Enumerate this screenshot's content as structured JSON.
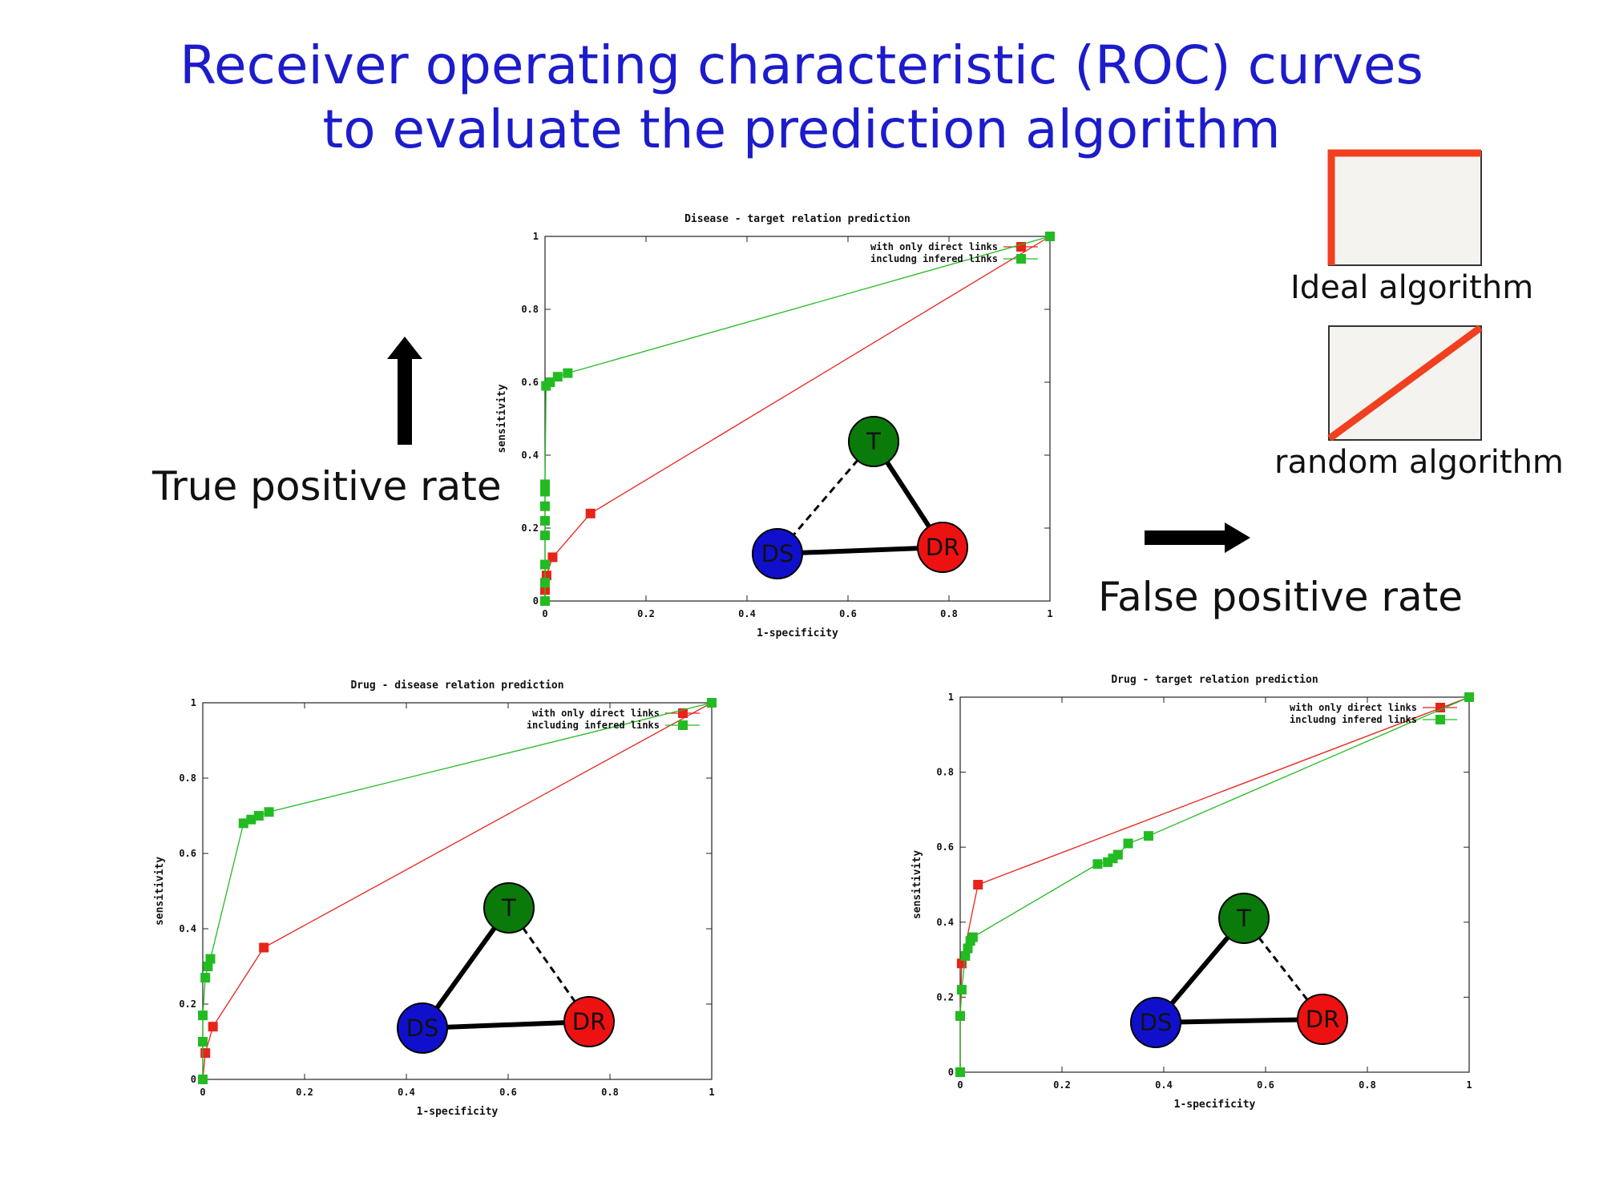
{
  "slide": {
    "title_line1": "Receiver operating characteristic (ROC) curves",
    "title_line2": "to evaluate the prediction algorithm",
    "y_caption": "True positive rate",
    "x_caption": "False positive rate",
    "ideal_label": "Ideal algorithm",
    "random_label": "random algorithm",
    "colors": {
      "title": "#1c1ccc",
      "series_direct": "#e8231a",
      "series_inferred": "#22bb22",
      "ideal_line": "#f04020",
      "target_node": "#0a7a0a",
      "disease_node": "#1010cc",
      "drug_node": "#ee1111"
    }
  },
  "chart_data": [
    {
      "type": "line",
      "title": "Disease - target relation prediction",
      "xlabel": "1-specificity",
      "ylabel": "sensitivity",
      "xlim": [
        0,
        1
      ],
      "ylim": [
        0,
        1
      ],
      "xticks": [
        "0",
        "0.2",
        "0.4",
        "0.6",
        "0.8",
        "1"
      ],
      "yticks": [
        "0",
        "0.2",
        "0.4",
        "0.6",
        "0.8",
        "1"
      ],
      "grid": false,
      "legend_position": "top-right",
      "series": [
        {
          "name": "with only direct links",
          "color": "#e8231a",
          "x": [
            0,
            0,
            0.003,
            0.015,
            0.09,
            1
          ],
          "y": [
            0,
            0.03,
            0.07,
            0.12,
            0.24,
            1
          ]
        },
        {
          "name": "includng infered links",
          "color": "#22bb22",
          "x": [
            0,
            0,
            0,
            0,
            0,
            0,
            0,
            0,
            0.002,
            0.01,
            0.025,
            0.045,
            1
          ],
          "y": [
            0,
            0.05,
            0.1,
            0.18,
            0.22,
            0.26,
            0.3,
            0.32,
            0.59,
            0.6,
            0.615,
            0.625,
            1
          ]
        }
      ],
      "diagram": {
        "top": "T",
        "left": "DS",
        "right": "DR",
        "dashed_edge": "DS-T"
      }
    },
    {
      "type": "line",
      "title": "Drug - disease relation prediction",
      "xlabel": "1-specificity",
      "ylabel": "sensitivity",
      "xlim": [
        0,
        1
      ],
      "ylim": [
        0,
        1
      ],
      "xticks": [
        "0",
        "0.2",
        "0.4",
        "0.6",
        "0.8",
        "1"
      ],
      "yticks": [
        "0",
        "0.2",
        "0.4",
        "0.6",
        "0.8",
        "1"
      ],
      "grid": false,
      "legend_position": "top-right",
      "series": [
        {
          "name": "with only direct links",
          "color": "#e8231a",
          "x": [
            0,
            0.005,
            0.02,
            0.12,
            1
          ],
          "y": [
            0,
            0.07,
            0.14,
            0.35,
            1
          ]
        },
        {
          "name": "including infered links",
          "color": "#22bb22",
          "x": [
            0,
            0,
            0,
            0.005,
            0.01,
            0.015,
            0.08,
            0.095,
            0.11,
            0.13,
            1
          ],
          "y": [
            0,
            0.1,
            0.17,
            0.27,
            0.3,
            0.32,
            0.68,
            0.69,
            0.7,
            0.71,
            1
          ]
        }
      ],
      "diagram": {
        "top": "T",
        "left": "DS",
        "right": "DR",
        "dashed_edge": "T-DR"
      }
    },
    {
      "type": "line",
      "title": "Drug - target relation prediction",
      "xlabel": "1-specificity",
      "ylabel": "sensitivity",
      "xlim": [
        0,
        1
      ],
      "ylim": [
        0,
        1
      ],
      "xticks": [
        "0",
        "0.2",
        "0.4",
        "0.6",
        "0.8",
        "1"
      ],
      "yticks": [
        "0",
        "0.2",
        "0.4",
        "0.6",
        "0.8",
        "1"
      ],
      "grid": false,
      "legend_position": "top-right",
      "series": [
        {
          "name": "with only direct links",
          "color": "#e8231a",
          "x": [
            0,
            0,
            0.003,
            0.035,
            1
          ],
          "y": [
            0,
            0.15,
            0.29,
            0.5,
            1
          ]
        },
        {
          "name": "includng infered links",
          "color": "#22bb22",
          "x": [
            0,
            0,
            0.003,
            0.01,
            0.015,
            0.02,
            0.025,
            0.27,
            0.29,
            0.3,
            0.31,
            0.33,
            0.37,
            1
          ],
          "y": [
            0,
            0.15,
            0.22,
            0.31,
            0.33,
            0.35,
            0.36,
            0.555,
            0.56,
            0.57,
            0.58,
            0.61,
            0.63,
            1
          ]
        }
      ],
      "diagram": {
        "top": "T",
        "left": "DS",
        "right": "DR",
        "dashed_edge": "T-DR"
      }
    }
  ]
}
